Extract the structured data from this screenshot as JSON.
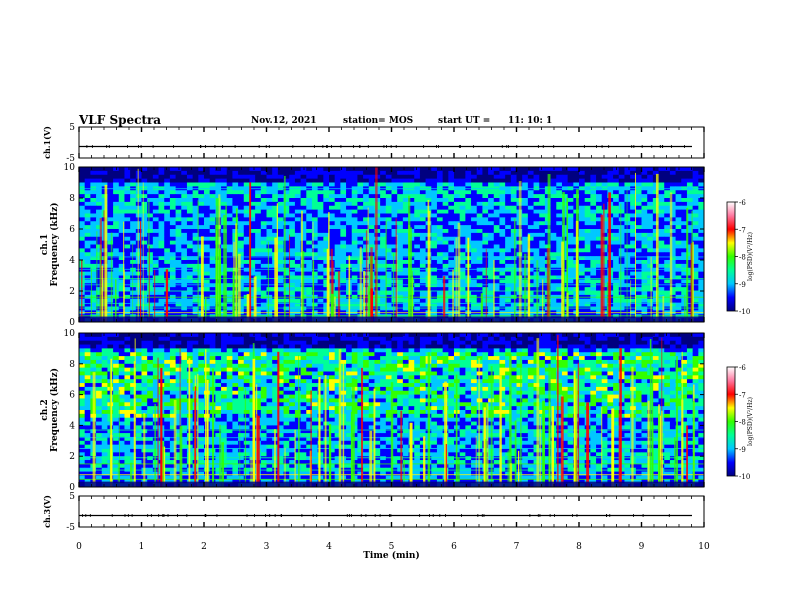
{
  "header": {
    "title": "VLF Spectra",
    "date": "Nov.12, 2021",
    "station_label": "station= MOS",
    "start_label": "start  UT  =",
    "start_value": "11: 10: 1"
  },
  "chart_data": {
    "type": "heatmap",
    "xlabel": "Time  (min)",
    "x_range": [
      0,
      10
    ],
    "x_ticks": [
      "0",
      "1",
      "2",
      "3",
      "4",
      "5",
      "6",
      "7",
      "8",
      "9",
      "10"
    ],
    "panels": [
      {
        "kind": "waveform",
        "ylabel": "ch.1(V)",
        "y_range": [
          -5,
          5
        ],
        "y_ticks": [
          "5",
          "-5"
        ]
      },
      {
        "kind": "spectrogram",
        "ylabel_channel": "ch.1",
        "ylabel": "Frequency  (kHz)",
        "y_range": [
          0,
          10
        ],
        "y_ticks": [
          "0",
          "2",
          "4",
          "6",
          "8",
          "10"
        ]
      },
      {
        "kind": "spectrogram",
        "ylabel_channel": "ch.2",
        "ylabel": "Frequency  (kHz)",
        "y_range": [
          0,
          10
        ],
        "y_ticks": [
          "0",
          "2",
          "4",
          "6",
          "8",
          "10"
        ]
      },
      {
        "kind": "waveform",
        "ylabel": "ch.3(V)",
        "y_range": [
          -5,
          5
        ],
        "y_ticks": [
          "5",
          "-5"
        ]
      }
    ],
    "colorbar": {
      "label": "log(PSD)(V²/Hz)",
      "range": [
        -10,
        -6
      ],
      "ticks": [
        "-6",
        "-7",
        "-8",
        "-9",
        "-10"
      ],
      "colors": [
        "#000080",
        "#0000ff",
        "#00c8ff",
        "#00ff96",
        "#32ff00",
        "#ffff00",
        "#ff0000",
        "#ff78a0",
        "#ffffff"
      ]
    }
  }
}
